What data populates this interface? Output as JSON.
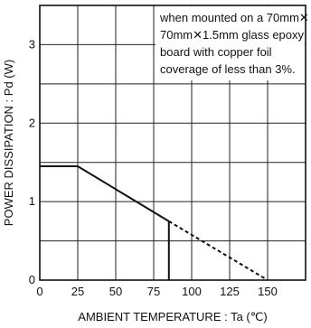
{
  "chart_data": {
    "type": "line",
    "xlabel": "AMBIENT TEMPERATURE : Ta (℃)",
    "ylabel": "POWER DISSIPATION : Pd  (W)",
    "xlim": [
      0,
      175
    ],
    "ylim": [
      0,
      3.5
    ],
    "x_ticks": [
      "0",
      "25",
      "50",
      "75",
      "100",
      "125",
      "150"
    ],
    "x_tick_values": [
      0,
      25,
      50,
      75,
      100,
      125,
      150
    ],
    "y_ticks": [
      "0",
      "1",
      "2",
      "3"
    ],
    "y_tick_values": [
      0,
      1,
      2,
      3
    ],
    "grid": true,
    "series": [
      {
        "style": "solid",
        "x": [
          0,
          25,
          85
        ],
        "y": [
          1.45,
          1.45,
          0.75
        ]
      },
      {
        "style": "dashed",
        "x": [
          85,
          150
        ],
        "y": [
          0.75,
          0
        ]
      },
      {
        "style": "solid",
        "x": [
          85,
          85
        ],
        "y": [
          0.75,
          0
        ]
      }
    ],
    "annotation": [
      "when mounted on a 70mm✕",
      "70mm✕1.5mm glass epoxy",
      "board with copper foil",
      "coverage of less than 3%."
    ]
  }
}
